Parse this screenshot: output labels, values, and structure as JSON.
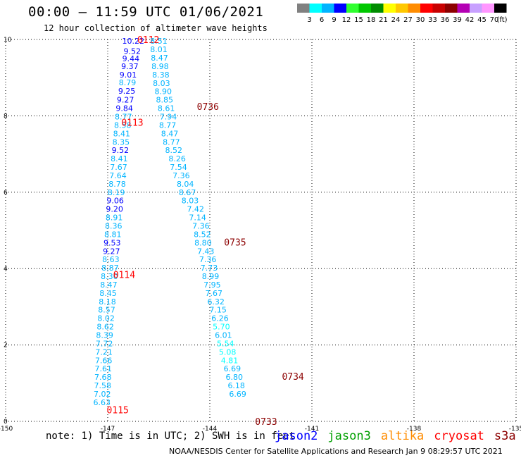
{
  "header": {
    "title": "00:00 – 11:59 UTC 01/06/2021",
    "subtitle": "12 hour collection of altimeter wave heights"
  },
  "colorbar": {
    "colors": [
      "#808080",
      "#00ffff",
      "#00b4ff",
      "#0000ff",
      "#30ff30",
      "#00c800",
      "#008c00",
      "#ffff00",
      "#ffc800",
      "#ff8c00",
      "#ff0000",
      "#c80000",
      "#8c0000",
      "#b400b4",
      "#c8a0ff",
      "#ff96ff",
      "#000000"
    ],
    "labels": [
      "3",
      "6",
      "9",
      "12",
      "15",
      "18",
      "21",
      "24",
      "27",
      "30",
      "33",
      "36",
      "39",
      "42",
      "45",
      "70"
    ],
    "unit": "(ft)"
  },
  "footer": {
    "note": "note:  1) Time is in UTC;  2) SWH is in feet",
    "satellites": [
      {
        "name": "jason2",
        "color": "#0000ff"
      },
      {
        "name": "jason3",
        "color": "#00a000"
      },
      {
        "name": "altika",
        "color": "#ff8c00"
      },
      {
        "name": "cryosat",
        "color": "#ff0000"
      },
      {
        "name": "s3a",
        "color": "#8c0000"
      }
    ],
    "credit": "NOAA/NESDIS Center for Satellite Applications and Research    Jan  9 08:29:57 UTC 2021"
  },
  "chart_data": {
    "type": "scatter",
    "xlim": [
      -150,
      -135
    ],
    "ylim": [
      0,
      10
    ],
    "x_ticks": [
      "-150",
      "-147",
      "-144",
      "-141",
      "-138",
      "-135"
    ],
    "y_ticks": [
      "0",
      "2",
      "4",
      "6",
      "8",
      "10"
    ],
    "grid": true,
    "series": [
      {
        "name": "cryosat",
        "color": "#ff0000",
        "time_labels": [
          {
            "text": "0112",
            "x": -146.13,
            "y": 10.0
          },
          {
            "text": "0113",
            "x": -146.6,
            "y": 7.83
          },
          {
            "text": "0114",
            "x": -146.84,
            "y": 3.85
          },
          {
            "text": "0115",
            "x": -147.03,
            "y": 0.3
          }
        ],
        "points": [
          {
            "x": -146.25,
            "y": 9.96,
            "v": 10.22,
            "c": "#0000ff"
          },
          {
            "x": -146.28,
            "y": 9.7,
            "v": 9.52,
            "c": "#0000ff"
          },
          {
            "x": -146.32,
            "y": 9.5,
            "v": 9.44,
            "c": "#0000ff"
          },
          {
            "x": -146.35,
            "y": 9.3,
            "v": 9.37,
            "c": "#0000ff"
          },
          {
            "x": -146.4,
            "y": 9.08,
            "v": 9.01,
            "c": "#0000ff"
          },
          {
            "x": -146.42,
            "y": 8.87,
            "v": 8.79,
            "c": "#00b4ff"
          },
          {
            "x": -146.44,
            "y": 8.65,
            "v": 9.25,
            "c": "#0000ff"
          },
          {
            "x": -146.48,
            "y": 8.42,
            "v": 9.27,
            "c": "#0000ff"
          },
          {
            "x": -146.51,
            "y": 8.2,
            "v": 9.84,
            "c": "#0000ff"
          },
          {
            "x": -146.54,
            "y": 7.98,
            "v": 8.77,
            "c": "#00b4ff"
          },
          {
            "x": -146.56,
            "y": 7.76,
            "v": 8.58,
            "c": "#00b4ff"
          },
          {
            "x": -146.59,
            "y": 7.54,
            "v": 8.41,
            "c": "#00b4ff"
          },
          {
            "x": -146.61,
            "y": 7.32,
            "v": 8.35,
            "c": "#00b4ff"
          },
          {
            "x": -146.63,
            "y": 7.1,
            "v": 9.52,
            "c": "#0000ff"
          },
          {
            "x": -146.66,
            "y": 6.88,
            "v": 8.41,
            "c": "#00b4ff"
          },
          {
            "x": -146.68,
            "y": 6.66,
            "v": 7.67,
            "c": "#00b4ff"
          },
          {
            "x": -146.7,
            "y": 6.44,
            "v": 7.64,
            "c": "#00b4ff"
          },
          {
            "x": -146.72,
            "y": 6.22,
            "v": 8.78,
            "c": "#00b4ff"
          },
          {
            "x": -146.75,
            "y": 6.0,
            "v": 8.19,
            "c": "#00b4ff"
          },
          {
            "x": -146.78,
            "y": 5.78,
            "v": 9.06,
            "c": "#0000ff"
          },
          {
            "x": -146.8,
            "y": 5.56,
            "v": 9.2,
            "c": "#0000ff"
          },
          {
            "x": -146.81,
            "y": 5.34,
            "v": 8.91,
            "c": "#00b4ff"
          },
          {
            "x": -146.83,
            "y": 5.12,
            "v": 8.36,
            "c": "#00b4ff"
          },
          {
            "x": -146.85,
            "y": 4.9,
            "v": 8.81,
            "c": "#00b4ff"
          },
          {
            "x": -146.87,
            "y": 4.68,
            "v": 9.53,
            "c": "#0000ff"
          },
          {
            "x": -146.89,
            "y": 4.46,
            "v": 9.27,
            "c": "#0000ff"
          },
          {
            "x": -146.91,
            "y": 4.24,
            "v": 8.63,
            "c": "#00b4ff"
          },
          {
            "x": -146.93,
            "y": 4.02,
            "v": 8.87,
            "c": "#00b4ff"
          },
          {
            "x": -146.95,
            "y": 3.8,
            "v": 8.3,
            "c": "#00b4ff"
          },
          {
            "x": -146.97,
            "y": 3.58,
            "v": 8.47,
            "c": "#00b4ff"
          },
          {
            "x": -146.99,
            "y": 3.36,
            "v": 8.45,
            "c": "#00b4ff"
          },
          {
            "x": -147.01,
            "y": 3.14,
            "v": 8.18,
            "c": "#00b4ff"
          },
          {
            "x": -147.03,
            "y": 2.92,
            "v": 8.57,
            "c": "#00b4ff"
          },
          {
            "x": -147.05,
            "y": 2.7,
            "v": 8.02,
            "c": "#00b4ff"
          },
          {
            "x": -147.07,
            "y": 2.48,
            "v": 8.62,
            "c": "#00b4ff"
          },
          {
            "x": -147.09,
            "y": 2.26,
            "v": 8.39,
            "c": "#00b4ff"
          },
          {
            "x": -147.1,
            "y": 2.04,
            "v": 7.72,
            "c": "#00b4ff"
          },
          {
            "x": -147.11,
            "y": 1.82,
            "v": 7.21,
            "c": "#00b4ff"
          },
          {
            "x": -147.12,
            "y": 1.6,
            "v": 7.66,
            "c": "#00b4ff"
          },
          {
            "x": -147.13,
            "y": 1.38,
            "v": 7.61,
            "c": "#00b4ff"
          },
          {
            "x": -147.14,
            "y": 1.16,
            "v": 7.68,
            "c": "#00b4ff"
          },
          {
            "x": -147.15,
            "y": 0.94,
            "v": 7.58,
            "c": "#00b4ff"
          },
          {
            "x": -147.16,
            "y": 0.72,
            "v": 7.02,
            "c": "#00b4ff"
          },
          {
            "x": -147.17,
            "y": 0.5,
            "v": 6.63,
            "c": "#00b4ff"
          }
        ]
      },
      {
        "name": "s3a",
        "color": "#8c0000",
        "time_labels": [
          {
            "text": "0736",
            "x": -144.38,
            "y": 8.25
          },
          {
            "text": "0735",
            "x": -143.58,
            "y": 4.7
          },
          {
            "text": "0734",
            "x": -141.88,
            "y": 1.18
          },
          {
            "text": "0733",
            "x": -142.67,
            "y": 0.0
          }
        ],
        "points": [
          {
            "x": -145.5,
            "y": 9.96,
            "v": 8.51,
            "c": "#00b4ff"
          },
          {
            "x": -145.5,
            "y": 9.74,
            "v": 8.01,
            "c": "#00b4ff"
          },
          {
            "x": -145.48,
            "y": 9.52,
            "v": 8.47,
            "c": "#00b4ff"
          },
          {
            "x": -145.46,
            "y": 9.3,
            "v": 8.98,
            "c": "#00b4ff"
          },
          {
            "x": -145.44,
            "y": 9.08,
            "v": 8.38,
            "c": "#00b4ff"
          },
          {
            "x": -145.42,
            "y": 8.86,
            "v": 8.03,
            "c": "#00b4ff"
          },
          {
            "x": -145.37,
            "y": 8.64,
            "v": 8.9,
            "c": "#00b4ff"
          },
          {
            "x": -145.33,
            "y": 8.42,
            "v": 8.85,
            "c": "#00b4ff"
          },
          {
            "x": -145.28,
            "y": 8.2,
            "v": 8.61,
            "c": "#00b4ff"
          },
          {
            "x": -145.22,
            "y": 7.98,
            "v": 7.94,
            "c": "#00b4ff"
          },
          {
            "x": -145.24,
            "y": 7.76,
            "v": 8.77,
            "c": "#00b4ff"
          },
          {
            "x": -145.18,
            "y": 7.54,
            "v": 8.47,
            "c": "#00b4ff"
          },
          {
            "x": -145.13,
            "y": 7.32,
            "v": 8.77,
            "c": "#00b4ff"
          },
          {
            "x": -145.06,
            "y": 7.1,
            "v": 8.52,
            "c": "#00b4ff"
          },
          {
            "x": -144.96,
            "y": 6.88,
            "v": 8.26,
            "c": "#00b4ff"
          },
          {
            "x": -144.92,
            "y": 6.66,
            "v": 7.54,
            "c": "#00b4ff"
          },
          {
            "x": -144.84,
            "y": 6.44,
            "v": 7.36,
            "c": "#00b4ff"
          },
          {
            "x": -144.72,
            "y": 6.22,
            "v": 8.04,
            "c": "#00b4ff"
          },
          {
            "x": -144.66,
            "y": 6.0,
            "v": 8.67,
            "c": "#00b4ff"
          },
          {
            "x": -144.58,
            "y": 5.78,
            "v": 8.03,
            "c": "#00b4ff"
          },
          {
            "x": -144.42,
            "y": 5.56,
            "v": 7.42,
            "c": "#00b4ff"
          },
          {
            "x": -144.36,
            "y": 5.34,
            "v": 7.14,
            "c": "#00b4ff"
          },
          {
            "x": -144.26,
            "y": 5.12,
            "v": 7.36,
            "c": "#00b4ff"
          },
          {
            "x": -144.22,
            "y": 4.9,
            "v": 8.52,
            "c": "#00b4ff"
          },
          {
            "x": -144.2,
            "y": 4.68,
            "v": 8.8,
            "c": "#00b4ff"
          },
          {
            "x": -144.12,
            "y": 4.46,
            "v": 7.43,
            "c": "#00b4ff"
          },
          {
            "x": -144.06,
            "y": 4.24,
            "v": 7.36,
            "c": "#00b4ff"
          },
          {
            "x": -144.02,
            "y": 4.02,
            "v": 7.73,
            "c": "#00b4ff"
          },
          {
            "x": -143.98,
            "y": 3.8,
            "v": 8.99,
            "c": "#00b4ff"
          },
          {
            "x": -143.93,
            "y": 3.58,
            "v": 7.95,
            "c": "#00b4ff"
          },
          {
            "x": -143.88,
            "y": 3.36,
            "v": 7.67,
            "c": "#00b4ff"
          },
          {
            "x": -143.82,
            "y": 3.14,
            "v": 6.32,
            "c": "#00b4ff"
          },
          {
            "x": -143.76,
            "y": 2.92,
            "v": 7.15,
            "c": "#00b4ff"
          },
          {
            "x": -143.7,
            "y": 2.7,
            "v": 6.26,
            "c": "#00b4ff"
          },
          {
            "x": -143.66,
            "y": 2.48,
            "v": 5.7,
            "c": "#00ffff"
          },
          {
            "x": -143.6,
            "y": 2.26,
            "v": 6.01,
            "c": "#00b4ff"
          },
          {
            "x": -143.54,
            "y": 2.04,
            "v": 5.54,
            "c": "#00ffff"
          },
          {
            "x": -143.48,
            "y": 1.82,
            "v": 5.08,
            "c": "#00ffff"
          },
          {
            "x": -143.42,
            "y": 1.6,
            "v": 4.81,
            "c": "#00ffff"
          },
          {
            "x": -143.34,
            "y": 1.38,
            "v": 6.69,
            "c": "#00b4ff"
          },
          {
            "x": -143.28,
            "y": 1.16,
            "v": 6.8,
            "c": "#00b4ff"
          },
          {
            "x": -143.22,
            "y": 0.94,
            "v": 6.18,
            "c": "#00b4ff"
          },
          {
            "x": -143.18,
            "y": 0.72,
            "v": 6.69,
            "c": "#00b4ff"
          }
        ]
      }
    ]
  }
}
